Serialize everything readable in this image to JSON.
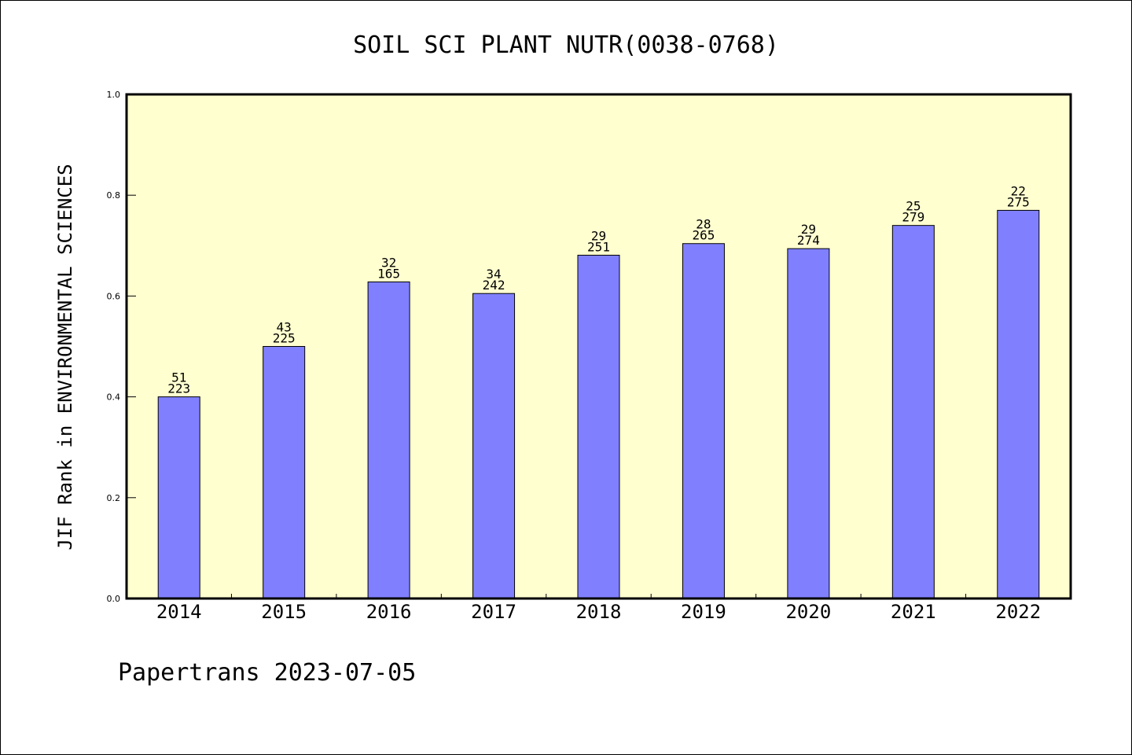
{
  "chart_data": {
    "type": "bar",
    "title": "SOIL SCI PLANT NUTR(0038-0768)",
    "xlabel": "",
    "ylabel": "JIF Rank in ENVIRONMENTAL SCIENCES",
    "footer": "Papertrans 2023-07-05",
    "categories": [
      "2014",
      "2015",
      "2016",
      "2017",
      "2018",
      "2019",
      "2020",
      "2021",
      "2022"
    ],
    "values": [
      0.4,
      0.5,
      0.628,
      0.605,
      0.681,
      0.704,
      0.694,
      0.74,
      0.77
    ],
    "rank": [
      "51",
      "43",
      "32",
      "34",
      "29",
      "28",
      "29",
      "25",
      "22"
    ],
    "total": [
      "223",
      "225",
      "165",
      "242",
      "251",
      "265",
      "274",
      "279",
      "275"
    ],
    "ylim": [
      0,
      1.0
    ],
    "yticks": [
      "0.0",
      "0.2",
      "0.4",
      "0.6",
      "0.8",
      "1.0"
    ],
    "grid": false,
    "colors": {
      "bar": "#8080ff",
      "plot_background": "#ffffd0",
      "border": "#000000"
    }
  }
}
